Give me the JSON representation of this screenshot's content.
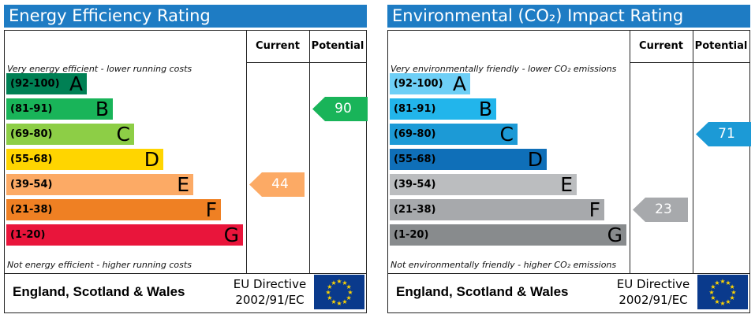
{
  "panels": [
    {
      "title": "Energy Efficiency Rating",
      "col_current": "Current",
      "col_potential": "Potential",
      "top_note": "Very energy efficient - lower running costs",
      "bottom_note": "Not energy efficient - higher running costs",
      "bands": [
        {
          "range": "(92-100)",
          "letter": "A",
          "color": "#008054"
        },
        {
          "range": "(81-91)",
          "letter": "B",
          "color": "#19b459"
        },
        {
          "range": "(69-80)",
          "letter": "C",
          "color": "#8dce46"
        },
        {
          "range": "(55-68)",
          "letter": "D",
          "color": "#ffd500"
        },
        {
          "range": "(39-54)",
          "letter": "E",
          "color": "#fcaa65"
        },
        {
          "range": "(21-38)",
          "letter": "F",
          "color": "#ef8023"
        },
        {
          "range": "(1-20)",
          "letter": "G",
          "color": "#e9153b"
        }
      ],
      "current": {
        "value": "44",
        "color": "#fcaa65"
      },
      "potential": {
        "value": "90",
        "color": "#19b459"
      },
      "footer_region": "England, Scotland & Wales",
      "footer_directive_line1": "EU Directive",
      "footer_directive_line2": "2002/91/EC"
    },
    {
      "title": "Environmental (CO₂) Impact Rating",
      "col_current": "Current",
      "col_potential": "Potential",
      "top_note": "Very environmentally friendly - lower CO₂ emissions",
      "bottom_note": "Not environmentally friendly - higher CO₂ emissions",
      "bands": [
        {
          "range": "(92-100)",
          "letter": "A",
          "color": "#6ecff6"
        },
        {
          "range": "(81-91)",
          "letter": "B",
          "color": "#22b5eb"
        },
        {
          "range": "(69-80)",
          "letter": "C",
          "color": "#1c9ad6"
        },
        {
          "range": "(55-68)",
          "letter": "D",
          "color": "#0f6fb8"
        },
        {
          "range": "(39-54)",
          "letter": "E",
          "color": "#bbbdbf"
        },
        {
          "range": "(21-38)",
          "letter": "F",
          "color": "#a7a9ac"
        },
        {
          "range": "(1-20)",
          "letter": "G",
          "color": "#888b8d"
        }
      ],
      "current": {
        "value": "23",
        "color": "#a7a9ac"
      },
      "potential": {
        "value": "71",
        "color": "#1c9ad6"
      },
      "footer_region": "England, Scotland & Wales",
      "footer_directive_line1": "EU Directive",
      "footer_directive_line2": "2002/91/EC"
    }
  ]
}
